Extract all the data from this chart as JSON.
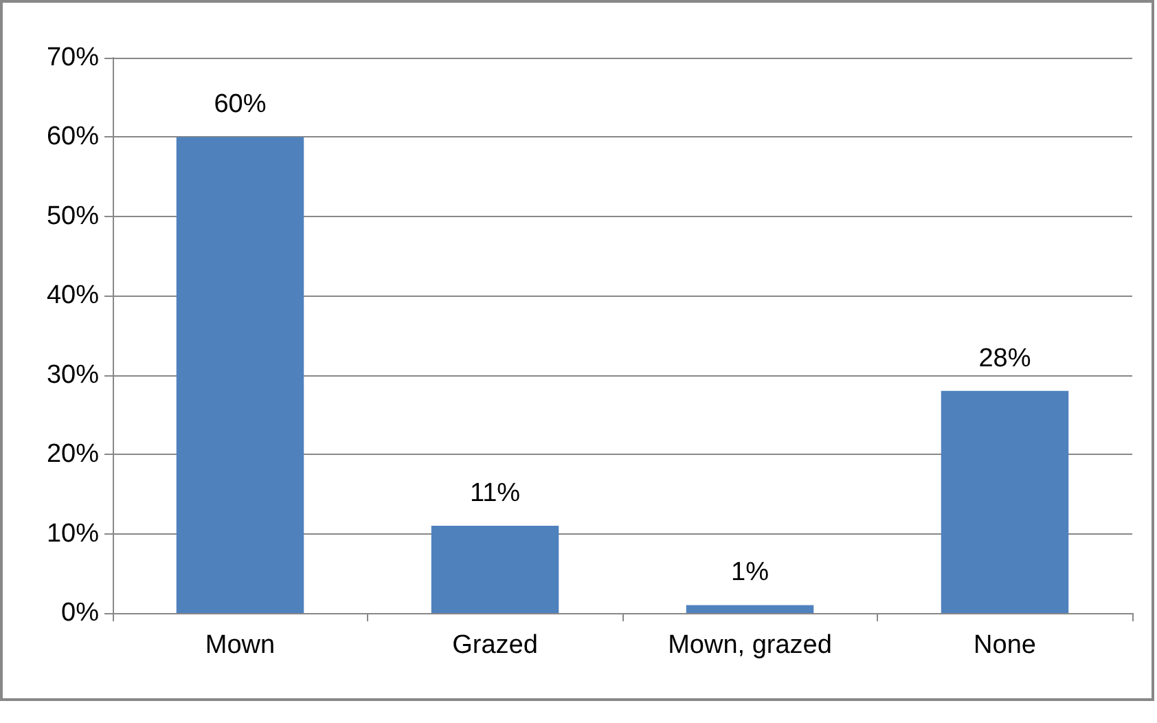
{
  "chart_data": {
    "type": "bar",
    "categories": [
      "Mown",
      "Grazed",
      "Mown, grazed",
      "None"
    ],
    "values": [
      60,
      11,
      1,
      28
    ],
    "value_labels": [
      "60%",
      "11%",
      "1%",
      "28%"
    ],
    "color": "#4f81bd",
    "ylim": [
      0,
      70
    ],
    "yticks": [
      {
        "value": 0,
        "label": "0%"
      },
      {
        "value": 10,
        "label": "10%"
      },
      {
        "value": 20,
        "label": "20%"
      },
      {
        "value": 30,
        "label": "30%"
      },
      {
        "value": 40,
        "label": "40%"
      },
      {
        "value": 50,
        "label": "50%"
      },
      {
        "value": 60,
        "label": "60%"
      },
      {
        "value": 70,
        "label": "70%"
      }
    ],
    "grid": "y"
  }
}
